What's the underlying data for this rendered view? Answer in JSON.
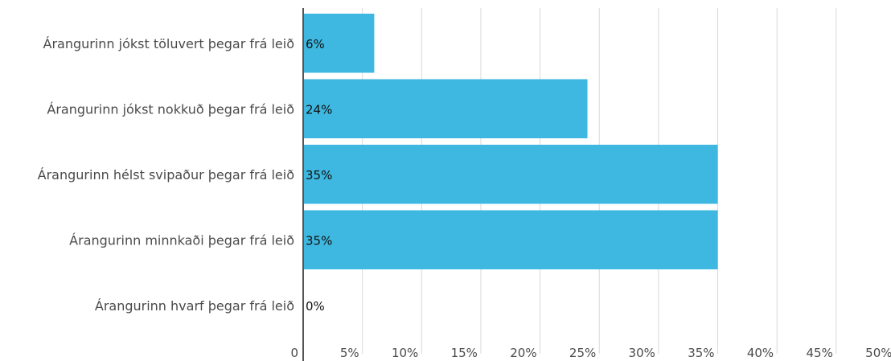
{
  "chart_data": {
    "type": "bar",
    "orientation": "horizontal",
    "categories": [
      "Árangurinn jókst töluvert þegar frá leið",
      "Árangurinn jókst nokkuð þegar frá leið",
      "Árangurinn hélst svipaður þegar frá leið",
      "Árangurinn minnkaði þegar frá leið",
      "Árangurinn hvarf þegar frá leið"
    ],
    "values": [
      6,
      24,
      35,
      35,
      0
    ],
    "data_labels": [
      "6%",
      "24%",
      "35%",
      "35%",
      "0%"
    ],
    "xlim": [
      0,
      50
    ],
    "x_ticks": [
      0,
      5,
      10,
      15,
      20,
      25,
      30,
      35,
      40,
      45,
      50
    ],
    "x_tick_labels": [
      "0",
      "5%",
      "10%",
      "15%",
      "20%",
      "25%",
      "30%",
      "35%",
      "40%",
      "45%",
      "50%"
    ],
    "grid": "vertical",
    "legend": "none",
    "bar_color": "#3eb8e0",
    "grid_color": "#d9d9d9",
    "axis_color": "#555555"
  }
}
